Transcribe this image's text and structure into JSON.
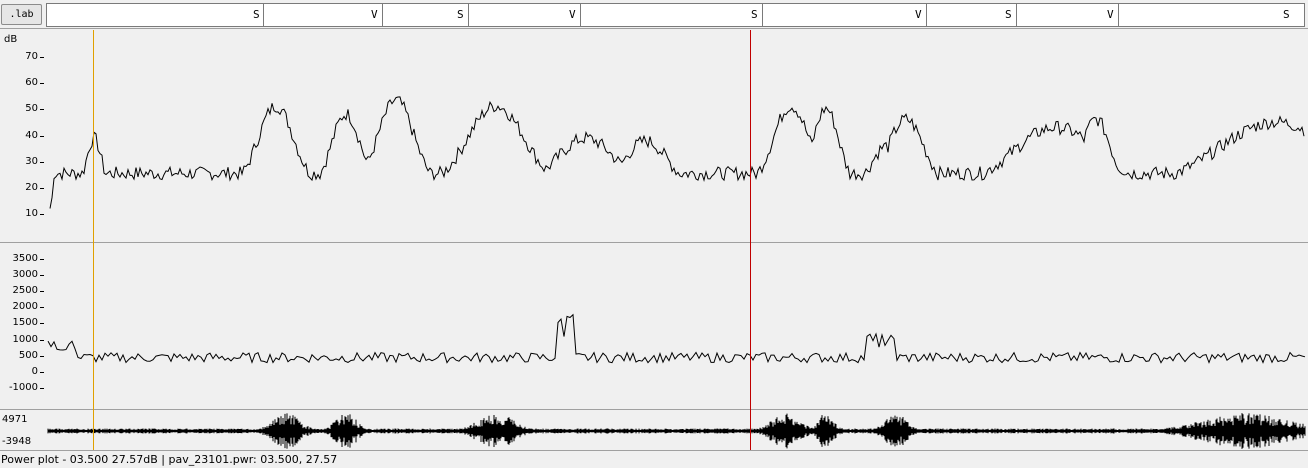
{
  "label_tier": {
    "button_label": ".lab",
    "segments": [
      "S",
      "V",
      "S",
      "V",
      "S",
      "V",
      "S",
      "V",
      "S"
    ]
  },
  "power_plot": {
    "unit_label": "dB",
    "ticks": [
      "70",
      "60",
      "50",
      "40",
      "30",
      "20",
      "10"
    ]
  },
  "pitch_plot": {
    "ticks": [
      "3500",
      "3000",
      "2500",
      "2000",
      "1500",
      "1000",
      "500",
      "0",
      "-1000"
    ]
  },
  "waveform": {
    "max_label": "4971",
    "min_label": "-3948"
  },
  "cursors": {
    "left_color": "#e0a000",
    "right_color": "#c00000"
  },
  "status_bar": {
    "text": "Power plot - 03.500 27.57dB | pav_23101.pwr: 03.500, 27.57"
  }
}
